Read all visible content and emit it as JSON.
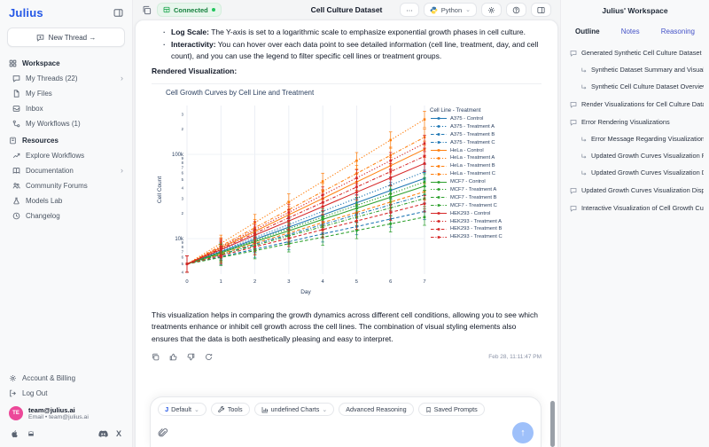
{
  "app": {
    "logo": "Julius"
  },
  "sidebar": {
    "new_thread": "New Thread →",
    "workspace_label": "Workspace",
    "workspace_items": [
      {
        "label": "My Threads (22)",
        "chevron": "›"
      },
      {
        "label": "My Files"
      },
      {
        "label": "Inbox"
      },
      {
        "label": "My Workflows (1)"
      }
    ],
    "resources_label": "Resources",
    "resource_items": [
      {
        "label": "Explore Workflows"
      },
      {
        "label": "Documentation",
        "chevron": "›"
      },
      {
        "label": "Community Forums"
      },
      {
        "label": "Models Lab"
      },
      {
        "label": "Changelog"
      }
    ],
    "account_billing": "Account & Billing",
    "log_out": "Log Out",
    "user": {
      "initials": "TE",
      "name": "team@julius.ai",
      "detail": "Email • team@julius.ai"
    }
  },
  "header": {
    "connected": "Connected",
    "title": "Cell Culture Dataset",
    "more": "⋯",
    "runtime": "Python"
  },
  "message": {
    "bullets": [
      {
        "label": "Log Scale:",
        "text": " The Y-axis is set to a logarithmic scale to emphasize exponential growth phases in cell culture."
      },
      {
        "label": "Interactivity:",
        "text": " You can hover over each data point to see detailed information (cell line, treatment, day, and cell count), and you can use the legend to filter specific cell lines or treatment groups."
      }
    ],
    "rendered_viz_heading": "Rendered Visualization:",
    "closing_paragraph": "This visualization helps in comparing the growth dynamics across different cell conditions, allowing you to see which treatments enhance or inhibit cell growth across the cell lines. The combination of visual styling elements also ensures that the data is both aesthetically pleasing and easy to interpret.",
    "timestamp": "Feb 28, 11:11:47 PM"
  },
  "chart_data": {
    "type": "line",
    "title": "Cell Growth Curves by Cell Line and Treatment",
    "xlabel": "Day",
    "ylabel": "Cell Count",
    "x": [
      0,
      1,
      2,
      3,
      4,
      5,
      6,
      7
    ],
    "yscale": "log",
    "ylim": [
      3800,
      380000
    ],
    "ytick_labels": [
      "10k",
      "100k"
    ],
    "grid": true,
    "error_bars": "approx ±20-25% per point",
    "legend_title": "Cell Line - Treatment",
    "legend_position": "right",
    "colors": {
      "A375": "#1f77b4",
      "HeLa": "#ff7f0e",
      "MCF7": "#2ca02c",
      "HEK293": "#d62728"
    },
    "dash_by_treatment": {
      "Control": "solid",
      "Treatment A": "dot",
      "Treatment B": "dash",
      "Treatment C": "dashdot"
    },
    "series": [
      {
        "name": "A375 - Control",
        "cell_line": "A375",
        "treatment": "Control",
        "dash": "solid",
        "values": [
          5000,
          7000,
          9800,
          13700,
          19100,
          26700,
          37300,
          52000
        ]
      },
      {
        "name": "A375 - Treatment A",
        "cell_line": "A375",
        "treatment": "Treatment A",
        "dash": "dot",
        "values": [
          5000,
          7200,
          10300,
          14700,
          21100,
          30200,
          43300,
          62000
        ]
      },
      {
        "name": "A375 - Treatment B",
        "cell_line": "A375",
        "treatment": "Treatment B",
        "dash": "dash",
        "values": [
          5000,
          6100,
          7500,
          9200,
          11400,
          13900,
          17100,
          21000
        ]
      },
      {
        "name": "A375 - Treatment C",
        "cell_line": "A375",
        "treatment": "Treatment C",
        "dash": "dashdot",
        "values": [
          5000,
          6500,
          8600,
          11200,
          14700,
          19300,
          25200,
          33000
        ]
      },
      {
        "name": "HeLa - Control",
        "cell_line": "HeLa",
        "treatment": "Control",
        "dash": "solid",
        "values": [
          5000,
          7800,
          12200,
          19200,
          30000,
          47000,
          73500,
          115000
        ]
      },
      {
        "name": "HeLa - Treatment A",
        "cell_line": "HeLa",
        "treatment": "Treatment A",
        "dash": "dot",
        "values": [
          5000,
          8800,
          15500,
          27200,
          47800,
          84100,
          147900,
          260000
        ]
      },
      {
        "name": "HeLa - Treatment B",
        "cell_line": "HeLa",
        "treatment": "Treatment B",
        "dash": "dash",
        "values": [
          5000,
          6600,
          8800,
          11700,
          15500,
          20500,
          27200,
          36000
        ]
      },
      {
        "name": "HeLa - Treatment C",
        "cell_line": "HeLa",
        "treatment": "Treatment C",
        "dash": "dashdot",
        "values": [
          5000,
          8200,
          13500,
          22100,
          36200,
          59400,
          97500,
          160000
        ]
      },
      {
        "name": "MCF7 - Control",
        "cell_line": "MCF7",
        "treatment": "Control",
        "dash": "solid",
        "values": [
          5000,
          6800,
          9200,
          12400,
          16900,
          22900,
          31000,
          42000
        ]
      },
      {
        "name": "MCF7 - Treatment A",
        "cell_line": "MCF7",
        "treatment": "Treatment A",
        "dash": "dot",
        "values": [
          5000,
          6900,
          9500,
          13100,
          18000,
          24800,
          34100,
          47000
        ]
      },
      {
        "name": "MCF7 - Treatment B",
        "cell_line": "MCF7",
        "treatment": "Treatment B",
        "dash": "dash",
        "values": [
          5000,
          6000,
          7200,
          8700,
          10400,
          12500,
          15000,
          18000
        ]
      },
      {
        "name": "MCF7 - Treatment C",
        "cell_line": "MCF7",
        "treatment": "Treatment C",
        "dash": "dashdot",
        "values": [
          5000,
          6500,
          8300,
          10800,
          13900,
          18000,
          23200,
          30000
        ]
      },
      {
        "name": "HEK293 - Control",
        "cell_line": "HEK293",
        "treatment": "Control",
        "dash": "solid",
        "values": [
          5000,
          7400,
          11000,
          16200,
          24000,
          35600,
          52700,
          78000
        ]
      },
      {
        "name": "HEK293 - Treatment A",
        "cell_line": "HEK293",
        "treatment": "Treatment A",
        "dash": "dot",
        "values": [
          5000,
          8000,
          12800,
          20500,
          32900,
          52600,
          84300,
          135000
        ]
      },
      {
        "name": "HEK293 - Treatment B",
        "cell_line": "HEK293",
        "treatment": "Treatment B",
        "dash": "dash",
        "values": [
          5000,
          6300,
          8000,
          10100,
          12800,
          16200,
          20500,
          26000
        ]
      },
      {
        "name": "HEK293 - Treatment C",
        "cell_line": "HEK293",
        "treatment": "Treatment C",
        "dash": "dashdot",
        "values": [
          5000,
          7600,
          11600,
          17700,
          26900,
          41000,
          62400,
          95000
        ]
      }
    ]
  },
  "composer": {
    "chips": [
      {
        "label": "Default",
        "dropdown": "⌄"
      },
      {
        "label": "Tools"
      },
      {
        "label": "undefined Charts",
        "dropdown": "⌄"
      },
      {
        "label": "Advanced Reasoning"
      },
      {
        "label": "Saved Prompts"
      }
    ],
    "send_arrow": "↑"
  },
  "workspace_panel": {
    "title": "Julius' Workspace",
    "tabs": [
      "Outline",
      "Notes",
      "Reasoning"
    ],
    "active_tab": "Outline",
    "outline": [
      {
        "label": "Generated Synthetic Cell Culture Dataset",
        "level": 0
      },
      {
        "label": "Synthetic Dataset Summary and Visuali...",
        "level": 1
      },
      {
        "label": "Synthetic Cell Culture Dataset Overview",
        "level": 1
      },
      {
        "label": "Render Visualizations for Cell Culture Datase",
        "level": 0
      },
      {
        "label": "Error Rendering Visualizations",
        "level": 0
      },
      {
        "label": "Error Message Regarding Visualization ...",
        "level": 1
      },
      {
        "label": "Updated Growth Curves Visualization R...",
        "level": 1
      },
      {
        "label": "Updated Growth Curves Visualization Di...",
        "level": 1
      },
      {
        "label": "Updated Growth Curves Visualization Displa",
        "level": 0
      },
      {
        "label": "Interactive Visualization of Cell Growth Curv",
        "level": 0
      }
    ]
  },
  "icons": {
    "connected-status-icon": "green table glyph",
    "python-icon": "two-tone python mark",
    "gear-icon": "⚙",
    "send-icon": "↑",
    "chevron-right": "›",
    "dropdown-caret": "⌄"
  }
}
